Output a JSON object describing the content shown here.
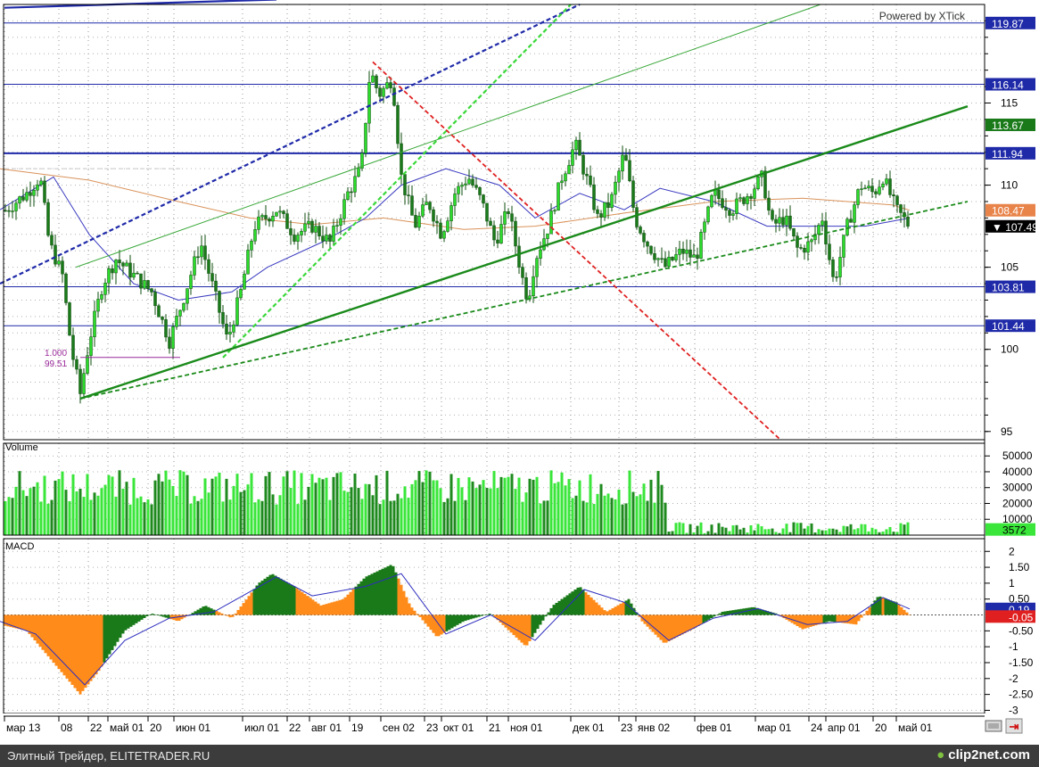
{
  "watermark": "Powered by XTick",
  "footer": {
    "left_text": "Элитный Трейдер, ELITETRADER.RU",
    "brand_text": "clip2net.com"
  },
  "colors": {
    "up": "#2bdc2b",
    "down": "#1a7a1a",
    "volume_light": "#39e639",
    "volume_dark": "#1e8a1e",
    "macd_pos": "#ff8c1a",
    "macd_neg": "#1a7a1a",
    "signal": "#2d2dbf",
    "ma_fast": "#3a3ac0",
    "ma_slow": "#d9925a",
    "level": "#1f2aa8"
  },
  "chart_data": [
    {
      "type": "candlestick",
      "panel": "price",
      "ylim": [
        94.5,
        121
      ],
      "y_ticks": [
        95,
        100,
        105,
        110,
        115
      ],
      "y_tick_labels": [
        "95",
        "100",
        "105",
        "110",
        "115"
      ],
      "price_labels": [
        {
          "value": 119.87,
          "text": "119.87",
          "color": "#1f2aa8"
        },
        {
          "value": 116.14,
          "text": "116.14",
          "color": "#1f2aa8"
        },
        {
          "value": 113.67,
          "text": "113.67",
          "color": "#1a7a1a"
        },
        {
          "value": 111.94,
          "text": "111.94",
          "color": "#1f2aa8"
        },
        {
          "value": 108.47,
          "text": "108.47",
          "color": "#e8834a"
        },
        {
          "value": 107.49,
          "text": "▼ 107.49",
          "color": "#000000"
        },
        {
          "value": 103.81,
          "text": "103.81",
          "color": "#1f2aa8"
        },
        {
          "value": 101.44,
          "text": "101.44",
          "color": "#1f2aa8"
        }
      ],
      "horizontal_levels": [
        119.87,
        116.14,
        111.94,
        103.81,
        101.44
      ],
      "annotation": {
        "line1": "1.000",
        "line2": "99.51"
      },
      "anchors": [
        {
          "x": 0,
          "y": 108.2
        },
        {
          "x": 30,
          "y": 109.5
        },
        {
          "x": 45,
          "y": 110.5
        },
        {
          "x": 55,
          "y": 106.5
        },
        {
          "x": 70,
          "y": 104.5
        },
        {
          "x": 80,
          "y": 100.0
        },
        {
          "x": 90,
          "y": 97.3
        },
        {
          "x": 100,
          "y": 100.5
        },
        {
          "x": 115,
          "y": 104.0
        },
        {
          "x": 130,
          "y": 105.5
        },
        {
          "x": 150,
          "y": 104.5
        },
        {
          "x": 170,
          "y": 103.5
        },
        {
          "x": 190,
          "y": 100.5
        },
        {
          "x": 205,
          "y": 103.0
        },
        {
          "x": 225,
          "y": 106.5
        },
        {
          "x": 240,
          "y": 103.5
        },
        {
          "x": 255,
          "y": 100.5
        },
        {
          "x": 270,
          "y": 103.5
        },
        {
          "x": 285,
          "y": 107.5
        },
        {
          "x": 310,
          "y": 108.5
        },
        {
          "x": 330,
          "y": 107.0
        },
        {
          "x": 350,
          "y": 107.5
        },
        {
          "x": 370,
          "y": 106.5
        },
        {
          "x": 390,
          "y": 109.5
        },
        {
          "x": 405,
          "y": 111.0
        },
        {
          "x": 415,
          "y": 117.0
        },
        {
          "x": 425,
          "y": 115.5
        },
        {
          "x": 440,
          "y": 116.5
        },
        {
          "x": 450,
          "y": 110.5
        },
        {
          "x": 465,
          "y": 107.5
        },
        {
          "x": 480,
          "y": 109.0
        },
        {
          "x": 495,
          "y": 107.0
        },
        {
          "x": 510,
          "y": 109.5
        },
        {
          "x": 525,
          "y": 110.5
        },
        {
          "x": 540,
          "y": 109.0
        },
        {
          "x": 555,
          "y": 106.5
        },
        {
          "x": 570,
          "y": 108.5
        },
        {
          "x": 585,
          "y": 104.5
        },
        {
          "x": 592,
          "y": 103.0
        },
        {
          "x": 600,
          "y": 105.5
        },
        {
          "x": 615,
          "y": 107.5
        },
        {
          "x": 630,
          "y": 110.5
        },
        {
          "x": 645,
          "y": 112.5
        },
        {
          "x": 660,
          "y": 110.0
        },
        {
          "x": 670,
          "y": 108.0
        },
        {
          "x": 685,
          "y": 109.0
        },
        {
          "x": 700,
          "y": 112.0
        },
        {
          "x": 712,
          "y": 108.0
        },
        {
          "x": 725,
          "y": 106.5
        },
        {
          "x": 745,
          "y": 105.0
        },
        {
          "x": 765,
          "y": 106.0
        },
        {
          "x": 780,
          "y": 105.5
        },
        {
          "x": 800,
          "y": 109.5
        },
        {
          "x": 820,
          "y": 108.5
        },
        {
          "x": 840,
          "y": 109.5
        },
        {
          "x": 855,
          "y": 110.5
        },
        {
          "x": 865,
          "y": 107.5
        },
        {
          "x": 880,
          "y": 108.0
        },
        {
          "x": 895,
          "y": 106.0
        },
        {
          "x": 910,
          "y": 106.5
        },
        {
          "x": 922,
          "y": 108.0
        },
        {
          "x": 935,
          "y": 104.0
        },
        {
          "x": 950,
          "y": 107.5
        },
        {
          "x": 965,
          "y": 110.0
        },
        {
          "x": 980,
          "y": 109.5
        },
        {
          "x": 990,
          "y": 110.5
        },
        {
          "x": 1005,
          "y": 108.5
        },
        {
          "x": 1020,
          "y": 107.5
        }
      ],
      "moving_average_fast": [
        {
          "x": 0,
          "y": 108.5
        },
        {
          "x": 60,
          "y": 110.5
        },
        {
          "x": 100,
          "y": 107.0
        },
        {
          "x": 150,
          "y": 104.0
        },
        {
          "x": 200,
          "y": 103.0
        },
        {
          "x": 260,
          "y": 103.5
        },
        {
          "x": 300,
          "y": 105.0
        },
        {
          "x": 360,
          "y": 106.5
        },
        {
          "x": 410,
          "y": 108.0
        },
        {
          "x": 450,
          "y": 110.0
        },
        {
          "x": 500,
          "y": 111.0
        },
        {
          "x": 560,
          "y": 110.0
        },
        {
          "x": 600,
          "y": 108.0
        },
        {
          "x": 650,
          "y": 109.5
        },
        {
          "x": 700,
          "y": 108.5
        },
        {
          "x": 740,
          "y": 109.8
        },
        {
          "x": 800,
          "y": 109.0
        },
        {
          "x": 860,
          "y": 107.5
        },
        {
          "x": 920,
          "y": 107.5
        },
        {
          "x": 970,
          "y": 107.5
        },
        {
          "x": 1020,
          "y": 108.0
        }
      ],
      "moving_average_slow": [
        {
          "x": 0,
          "y": 111.0
        },
        {
          "x": 100,
          "y": 110.3
        },
        {
          "x": 200,
          "y": 109.0
        },
        {
          "x": 280,
          "y": 108.0
        },
        {
          "x": 350,
          "y": 107.6
        },
        {
          "x": 430,
          "y": 108.0
        },
        {
          "x": 520,
          "y": 107.3
        },
        {
          "x": 600,
          "y": 107.5
        },
        {
          "x": 700,
          "y": 108.3
        },
        {
          "x": 800,
          "y": 109.0
        },
        {
          "x": 900,
          "y": 109.2
        },
        {
          "x": 1000,
          "y": 108.8
        },
        {
          "x": 1020,
          "y": 108.47
        }
      ],
      "trend_lines": [
        {
          "x1": 0,
          "y1": 104.0,
          "x2": 650,
          "y2": 121.0,
          "style": "dashed",
          "color": "#1f2aa8",
          "width": 2.2
        },
        {
          "x1": 250,
          "y1": 99.5,
          "x2": 640,
          "y2": 121.0,
          "style": "dashed",
          "color": "#3ad83a",
          "width": 2.2
        },
        {
          "x1": 85,
          "y1": 105.0,
          "x2": 920,
          "y2": 121.0,
          "style": "solid",
          "color": "#3aa83a",
          "width": 1
        },
        {
          "x1": 90,
          "y1": 97.0,
          "x2": 1085,
          "y2": 114.8,
          "style": "solid",
          "color": "#1a8a1a",
          "width": 2.4
        },
        {
          "x1": 90,
          "y1": 97.0,
          "x2": 1085,
          "y2": 109.0,
          "style": "dashed",
          "color": "#1a8a1a",
          "width": 1.8
        },
        {
          "x1": 418,
          "y1": 117.5,
          "x2": 875,
          "y2": 94.5,
          "style": "dashed",
          "color": "#e02020",
          "width": 1.8
        },
        {
          "x1": 5,
          "y1": 120.8,
          "x2": 310,
          "y2": 121.3,
          "style": "solid",
          "color": "#1f2aa8",
          "width": 2.2
        },
        {
          "x1": 5,
          "y1": 111.0,
          "x2": 205,
          "y2": 111.0,
          "style": "dashed",
          "color": "#c8c8c8",
          "width": 1
        },
        {
          "x1": 90,
          "y1": 99.51,
          "x2": 202,
          "y2": 99.51,
          "style": "solid",
          "color": "#9a2a9a",
          "width": 1
        }
      ]
    },
    {
      "type": "bar",
      "panel": "volume",
      "title": "Volume",
      "ylim": [
        0,
        58000
      ],
      "y_ticks": [
        10000,
        20000,
        30000,
        40000,
        50000
      ],
      "y_tick_labels": [
        "10000",
        "20000",
        "30000",
        "40000",
        "50000"
      ],
      "last_value_label": "3572",
      "segments": [
        {
          "x_start": 0,
          "x_end": 750,
          "base": 28000,
          "spread": 22000
        },
        {
          "x_start": 750,
          "x_end": 1022,
          "base": 4000,
          "spread": 7000
        }
      ]
    },
    {
      "type": "bar",
      "panel": "macd",
      "title": "MACD",
      "ylim": [
        -3.1,
        2.4
      ],
      "y_ticks": [
        2,
        1.5,
        1,
        0.5,
        -0.5,
        -1,
        -1.5,
        -2,
        -2.5,
        -3
      ],
      "y_tick_labels": [
        "2",
        "1.50",
        "1",
        "0.50",
        "-0.50",
        "-1",
        "-1.50",
        "-2",
        "-2.50",
        "-3"
      ],
      "value_labels": [
        {
          "value": 0.19,
          "text": "0.19",
          "color": "#1f2aa8"
        },
        {
          "value": -0.05,
          "text": "-0.05",
          "color": "#e02020"
        }
      ],
      "anchors": [
        {
          "x": 0,
          "y": -0.3
        },
        {
          "x": 30,
          "y": -0.5
        },
        {
          "x": 60,
          "y": -1.5
        },
        {
          "x": 90,
          "y": -2.5
        },
        {
          "x": 110,
          "y": -1.8
        },
        {
          "x": 140,
          "y": -0.5
        },
        {
          "x": 170,
          "y": 0.05
        },
        {
          "x": 200,
          "y": -0.2
        },
        {
          "x": 230,
          "y": 0.3
        },
        {
          "x": 260,
          "y": -0.1
        },
        {
          "x": 290,
          "y": 1.0
        },
        {
          "x": 305,
          "y": 1.3
        },
        {
          "x": 330,
          "y": 0.9
        },
        {
          "x": 360,
          "y": 0.3
        },
        {
          "x": 385,
          "y": 0.5
        },
        {
          "x": 410,
          "y": 1.2
        },
        {
          "x": 440,
          "y": 1.6
        },
        {
          "x": 460,
          "y": 0.3
        },
        {
          "x": 490,
          "y": -0.7
        },
        {
          "x": 520,
          "y": -0.2
        },
        {
          "x": 550,
          "y": 0.05
        },
        {
          "x": 590,
          "y": -1.0
        },
        {
          "x": 620,
          "y": 0.3
        },
        {
          "x": 650,
          "y": 0.9
        },
        {
          "x": 680,
          "y": 0.1
        },
        {
          "x": 705,
          "y": 0.5
        },
        {
          "x": 720,
          "y": -0.2
        },
        {
          "x": 745,
          "y": -0.9
        },
        {
          "x": 780,
          "y": -0.4
        },
        {
          "x": 810,
          "y": 0.1
        },
        {
          "x": 845,
          "y": 0.25
        },
        {
          "x": 870,
          "y": 0.05
        },
        {
          "x": 900,
          "y": -0.45
        },
        {
          "x": 930,
          "y": -0.2
        },
        {
          "x": 960,
          "y": -0.3
        },
        {
          "x": 985,
          "y": 0.6
        },
        {
          "x": 1005,
          "y": 0.4
        },
        {
          "x": 1020,
          "y": 0.0
        }
      ],
      "signal_line": [
        {
          "x": 0,
          "y": -0.2
        },
        {
          "x": 40,
          "y": -0.6
        },
        {
          "x": 95,
          "y": -2.2
        },
        {
          "x": 140,
          "y": -0.8
        },
        {
          "x": 190,
          "y": -0.1
        },
        {
          "x": 240,
          "y": 0.1
        },
        {
          "x": 310,
          "y": 1.2
        },
        {
          "x": 350,
          "y": 0.6
        },
        {
          "x": 410,
          "y": 0.9
        },
        {
          "x": 450,
          "y": 1.3
        },
        {
          "x": 500,
          "y": -0.6
        },
        {
          "x": 550,
          "y": 0.0
        },
        {
          "x": 600,
          "y": -0.8
        },
        {
          "x": 655,
          "y": 0.8
        },
        {
          "x": 700,
          "y": 0.4
        },
        {
          "x": 750,
          "y": -0.8
        },
        {
          "x": 800,
          "y": -0.1
        },
        {
          "x": 850,
          "y": 0.2
        },
        {
          "x": 905,
          "y": -0.3
        },
        {
          "x": 950,
          "y": -0.2
        },
        {
          "x": 990,
          "y": 0.55
        },
        {
          "x": 1020,
          "y": 0.19
        }
      ]
    }
  ],
  "x_axis": [
    {
      "x": 5,
      "label": "мар 13"
    },
    {
      "x": 66,
      "label": "08"
    },
    {
      "x": 99,
      "label": "22"
    },
    {
      "x": 121,
      "label": "май 01"
    },
    {
      "x": 166,
      "label": "20"
    },
    {
      "x": 195,
      "label": "июн 01"
    },
    {
      "x": 272,
      "label": "июл 01"
    },
    {
      "x": 322,
      "label": "22"
    },
    {
      "x": 347,
      "label": "авг 01"
    },
    {
      "x": 392,
      "label": "19"
    },
    {
      "x": 427,
      "label": "сен 02"
    },
    {
      "x": 476,
      "label": "23"
    },
    {
      "x": 495,
      "label": "окт 01"
    },
    {
      "x": 546,
      "label": "21"
    },
    {
      "x": 570,
      "label": "ноя 01"
    },
    {
      "x": 640,
      "label": "дек 01"
    },
    {
      "x": 694,
      "label": "23"
    },
    {
      "x": 713,
      "label": "янв 02"
    },
    {
      "x": 779,
      "label": "фев 01"
    },
    {
      "x": 847,
      "label": "мар 01"
    },
    {
      "x": 907,
      "label": "24"
    },
    {
      "x": 926,
      "label": "апр 01"
    },
    {
      "x": 979,
      "label": "20"
    },
    {
      "x": 1005,
      "label": "май 01"
    }
  ]
}
